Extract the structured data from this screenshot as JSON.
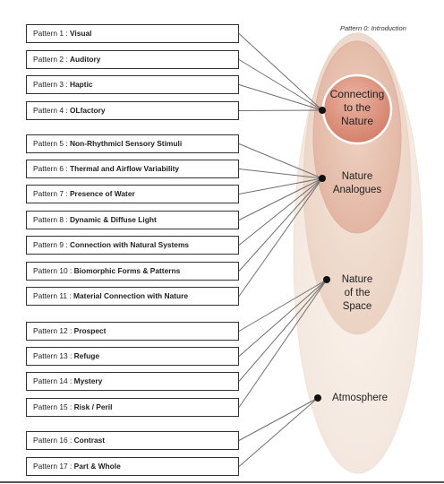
{
  "intro_note": "Pattern 0: Introduction",
  "categories": [
    {
      "id": "connecting",
      "label": [
        "Connecting",
        "to the",
        "Nature"
      ]
    },
    {
      "id": "analogues",
      "label": [
        "Nature",
        "Analogues"
      ]
    },
    {
      "id": "space",
      "label": [
        "Nature",
        "of the",
        "Space"
      ]
    },
    {
      "id": "atmosphere",
      "label": [
        "Atmosphere"
      ]
    }
  ],
  "patterns": [
    {
      "label": "Pattern 1 : ",
      "name": "Visual",
      "category": "connecting"
    },
    {
      "label": "Pattern 2 : ",
      "name": "Auditory",
      "category": "connecting"
    },
    {
      "label": "Pattern 3 : ",
      "name": "Haptic",
      "category": "connecting"
    },
    {
      "label": "Pattern 4 : ",
      "name": "OLfactory",
      "category": "connecting"
    },
    {
      "label": "Pattern 5 : ",
      "name": "Non-Rhythmicl Sensory Stimuli",
      "category": "analogues"
    },
    {
      "label": "Pattern 6 : ",
      "name": "Thermal and Airflow Variability",
      "category": "analogues"
    },
    {
      "label": "Pattern 7 : ",
      "name": "Presence of Water",
      "category": "analogues"
    },
    {
      "label": "Pattern 8 : ",
      "name": "Dynamic & Diffuse Light",
      "category": "analogues"
    },
    {
      "label": "Pattern 9 : ",
      "name": "Connection with Natural Systems",
      "category": "analogues"
    },
    {
      "label": "Pattern 10 : ",
      "name": "Biomorphic Forms & Patterns",
      "category": "analogues"
    },
    {
      "label": "Pattern 11 : ",
      "name": "Material Connection with Nature",
      "category": "analogues"
    },
    {
      "label": "Pattern 12 : ",
      "name": "Prospect",
      "category": "space"
    },
    {
      "label": "Pattern 13 : ",
      "name": "Refuge",
      "category": "space"
    },
    {
      "label": "Pattern 14 : ",
      "name": "Mystery",
      "category": "space"
    },
    {
      "label": "Pattern 15 : ",
      "name": "Risk / Peril",
      "category": "space"
    },
    {
      "label": "Pattern 16 : ",
      "name": "Contrast",
      "category": "atmosphere"
    },
    {
      "label": "Pattern 17 : ",
      "name": "Part & Whole",
      "category": "atmosphere"
    }
  ],
  "colors": {
    "outer": "#f6ece5",
    "mid2": "#efdccd",
    "mid1": "#e8c2b0",
    "inner": "#dc9179",
    "line": "#707070",
    "node": "#111111"
  }
}
